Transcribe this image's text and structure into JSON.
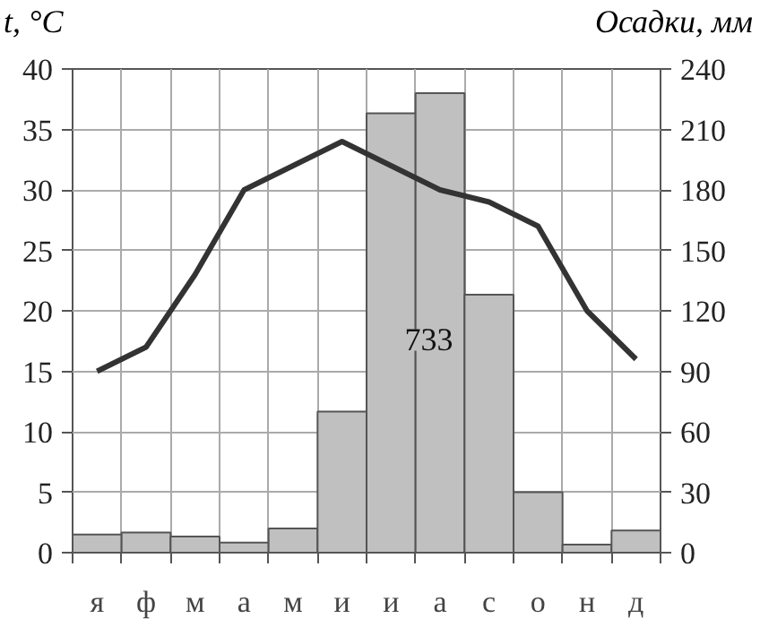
{
  "chart_data": {
    "type": "bar",
    "categories": [
      "я",
      "ф",
      "м",
      "а",
      "м",
      "и",
      "и",
      "а",
      "с",
      "о",
      "н",
      "д"
    ],
    "ylabel": "t, °C",
    "y2label": "Осадки, мм",
    "series": [
      {
        "axis": "y2",
        "color": "#c0c0c0",
        "values": [
          9,
          10,
          8,
          5,
          12,
          70,
          218,
          228,
          128,
          30,
          4,
          11
        ]
      },
      {
        "type": "line",
        "axis": "y",
        "color": "#333333",
        "values": [
          15,
          17,
          23,
          30,
          32,
          34,
          32,
          30,
          29,
          27,
          20,
          16
        ]
      }
    ],
    "ylim": [
      0,
      40
    ],
    "yticks": [
      0,
      5,
      10,
      15,
      20,
      25,
      30,
      35,
      40
    ],
    "y2lim": [
      0,
      240
    ],
    "y2ticks": [
      0,
      30,
      60,
      90,
      120,
      150,
      180,
      210,
      240
    ],
    "grid": true,
    "marker": "none",
    "line_style": "solid",
    "annotations": [
      "733"
    ]
  }
}
